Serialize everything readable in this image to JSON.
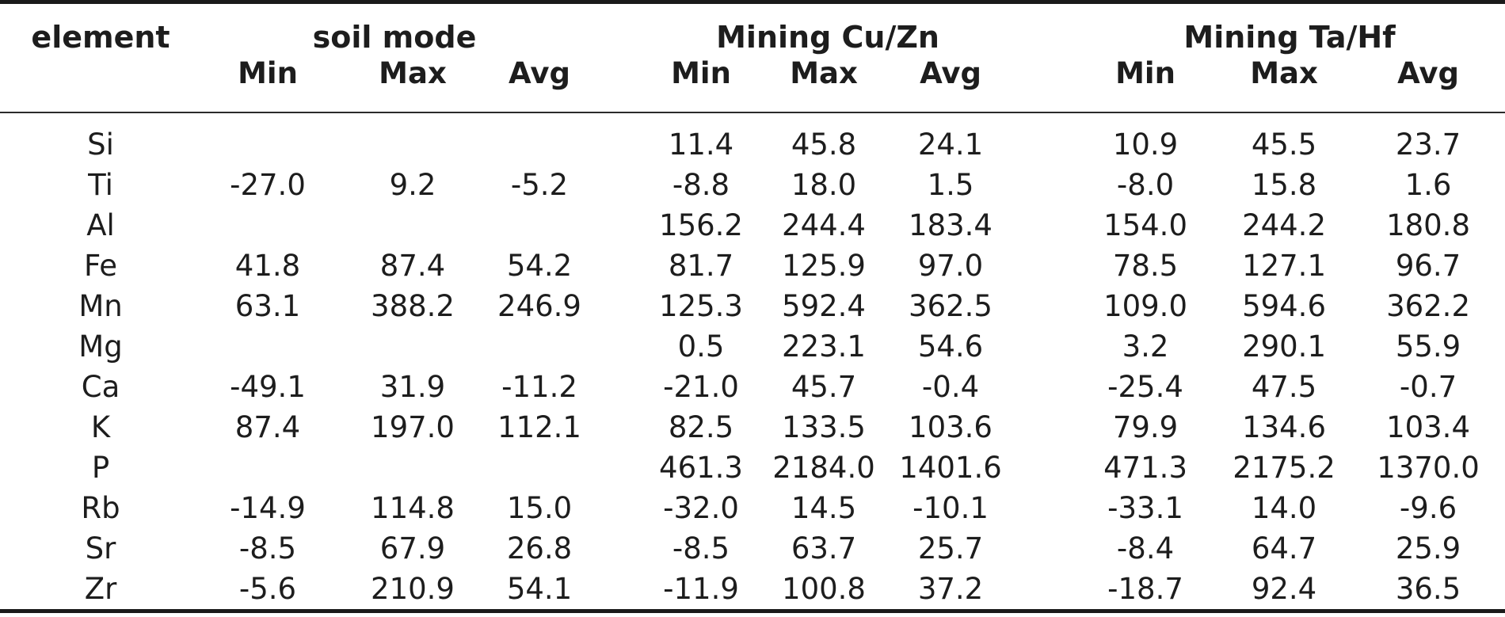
{
  "table": {
    "element_header": "element",
    "groups": [
      {
        "label": "soil mode",
        "subheaders": [
          "Min",
          "Max",
          "Avg"
        ]
      },
      {
        "label": "Mining Cu/Zn",
        "subheaders": [
          "Min",
          "Max",
          "Avg"
        ]
      },
      {
        "label": "Mining Ta/Hf",
        "subheaders": [
          "Min",
          "Max",
          "Avg"
        ]
      }
    ],
    "rows": [
      {
        "element": "Si",
        "soil_mode": {
          "min": "",
          "max": "",
          "avg": ""
        },
        "mining_cu_zn": {
          "min": "11.4",
          "max": "45.8",
          "avg": "24.1"
        },
        "mining_ta_hf": {
          "min": "10.9",
          "max": "45.5",
          "avg": "23.7"
        }
      },
      {
        "element": "Ti",
        "soil_mode": {
          "min": "-27.0",
          "max": "9.2",
          "avg": "-5.2"
        },
        "mining_cu_zn": {
          "min": "-8.8",
          "max": "18.0",
          "avg": "1.5"
        },
        "mining_ta_hf": {
          "min": "-8.0",
          "max": "15.8",
          "avg": "1.6"
        }
      },
      {
        "element": "Al",
        "soil_mode": {
          "min": "",
          "max": "",
          "avg": ""
        },
        "mining_cu_zn": {
          "min": "156.2",
          "max": "244.4",
          "avg": "183.4"
        },
        "mining_ta_hf": {
          "min": "154.0",
          "max": "244.2",
          "avg": "180.8"
        }
      },
      {
        "element": "Fe",
        "soil_mode": {
          "min": "41.8",
          "max": "87.4",
          "avg": "54.2"
        },
        "mining_cu_zn": {
          "min": "81.7",
          "max": "125.9",
          "avg": "97.0"
        },
        "mining_ta_hf": {
          "min": "78.5",
          "max": "127.1",
          "avg": "96.7"
        }
      },
      {
        "element": "Mn",
        "soil_mode": {
          "min": "63.1",
          "max": "388.2",
          "avg": "246.9"
        },
        "mining_cu_zn": {
          "min": "125.3",
          "max": "592.4",
          "avg": "362.5"
        },
        "mining_ta_hf": {
          "min": "109.0",
          "max": "594.6",
          "avg": "362.2"
        }
      },
      {
        "element": "Mg",
        "soil_mode": {
          "min": "",
          "max": "",
          "avg": ""
        },
        "mining_cu_zn": {
          "min": "0.5",
          "max": "223.1",
          "avg": "54.6"
        },
        "mining_ta_hf": {
          "min": "3.2",
          "max": "290.1",
          "avg": "55.9"
        }
      },
      {
        "element": "Ca",
        "soil_mode": {
          "min": "-49.1",
          "max": "31.9",
          "avg": "-11.2"
        },
        "mining_cu_zn": {
          "min": "-21.0",
          "max": "45.7",
          "avg": "-0.4"
        },
        "mining_ta_hf": {
          "min": "-25.4",
          "max": "47.5",
          "avg": "-0.7"
        }
      },
      {
        "element": "K",
        "soil_mode": {
          "min": "87.4",
          "max": "197.0",
          "avg": "112.1"
        },
        "mining_cu_zn": {
          "min": "82.5",
          "max": "133.5",
          "avg": "103.6"
        },
        "mining_ta_hf": {
          "min": "79.9",
          "max": "134.6",
          "avg": "103.4"
        }
      },
      {
        "element": "P",
        "soil_mode": {
          "min": "",
          "max": "",
          "avg": ""
        },
        "mining_cu_zn": {
          "min": "461.3",
          "max": "2184.0",
          "avg": "1401.6"
        },
        "mining_ta_hf": {
          "min": "471.3",
          "max": "2175.2",
          "avg": "1370.0"
        }
      },
      {
        "element": "Rb",
        "soil_mode": {
          "min": "-14.9",
          "max": "114.8",
          "avg": "15.0"
        },
        "mining_cu_zn": {
          "min": "-32.0",
          "max": "14.5",
          "avg": "-10.1"
        },
        "mining_ta_hf": {
          "min": "-33.1",
          "max": "14.0",
          "avg": "-9.6"
        }
      },
      {
        "element": "Sr",
        "soil_mode": {
          "min": "-8.5",
          "max": "67.9",
          "avg": "26.8"
        },
        "mining_cu_zn": {
          "min": "-8.5",
          "max": "63.7",
          "avg": "25.7"
        },
        "mining_ta_hf": {
          "min": "-8.4",
          "max": "64.7",
          "avg": "25.9"
        }
      },
      {
        "element": "Zr",
        "soil_mode": {
          "min": "-5.6",
          "max": "210.9",
          "avg": "54.1"
        },
        "mining_cu_zn": {
          "min": "-11.9",
          "max": "100.8",
          "avg": "37.2"
        },
        "mining_ta_hf": {
          "min": "-18.7",
          "max": "92.4",
          "avg": "36.5"
        }
      }
    ]
  },
  "colors": {
    "text": "#1d1d1d",
    "rule": "#1a1a1a",
    "rule-light": "#2b2b2b",
    "background": "#ffffff"
  }
}
